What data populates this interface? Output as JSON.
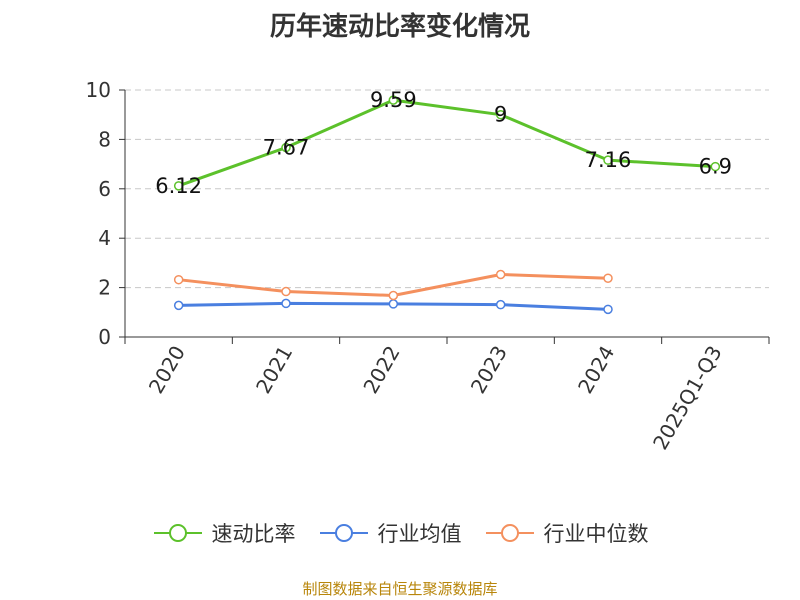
{
  "chart_data": {
    "type": "line",
    "title": "历年速动比率变化情况",
    "categories": [
      "2020",
      "2021",
      "2022",
      "2023",
      "2024",
      "2025Q1-Q3"
    ],
    "ylim": [
      0,
      10
    ],
    "yticks": [
      0,
      2,
      4,
      6,
      8,
      10
    ],
    "grid": true,
    "legend_position": "bottom",
    "series": [
      {
        "name": "速动比率",
        "color": "#5cc12b",
        "values": [
          6.12,
          7.67,
          9.59,
          9,
          7.16,
          6.9
        ],
        "data_labels": [
          "6.12",
          "7.67",
          "9.59",
          "9",
          "7.16",
          "6.9"
        ]
      },
      {
        "name": "行业均值",
        "color": "#4a7fe0",
        "values": [
          1.28,
          1.36,
          1.34,
          1.31,
          1.12,
          null
        ]
      },
      {
        "name": "行业中位数",
        "color": "#f4905e",
        "values": [
          2.32,
          1.84,
          1.68,
          2.53,
          2.38,
          null
        ]
      }
    ]
  },
  "source_note": "制图数据来自恒生聚源数据库"
}
